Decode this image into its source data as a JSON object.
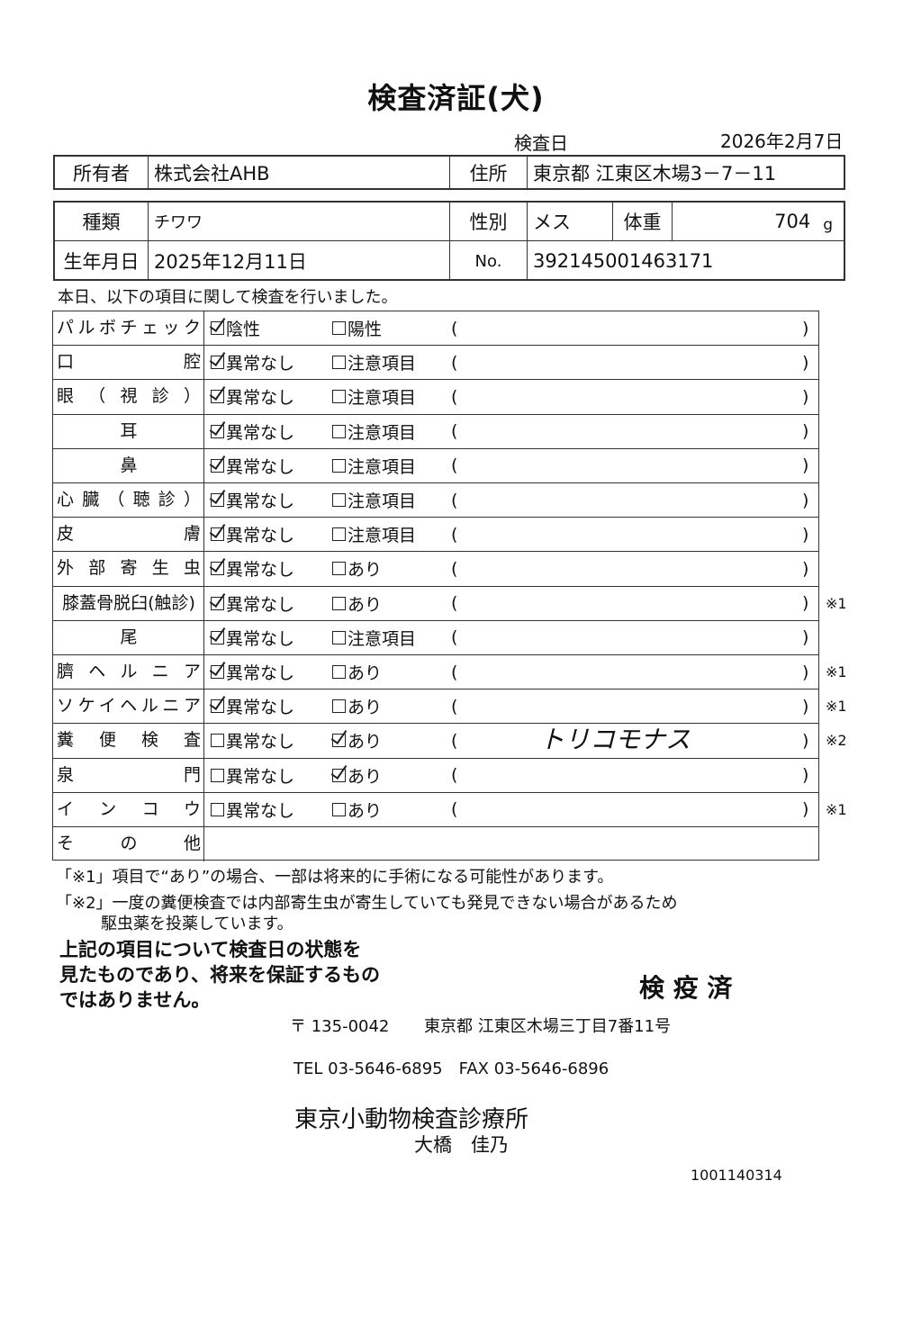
{
  "title": "検査済証(犬)",
  "exam_date_label": "検査日",
  "exam_date": "2026年2月7日",
  "owner": {
    "label": "所有者",
    "value": "株式会社AHB",
    "address_label": "住所",
    "address": "東京都 江東区木場3－7－11"
  },
  "animal": {
    "breed_label": "種類",
    "breed": "チワワ",
    "sex_label": "性別",
    "sex": "メス",
    "weight_label": "体重",
    "weight": "704",
    "weight_unit": "g",
    "birth_label": "生年月日",
    "birth": "2025年12月11日",
    "no_label": "No.",
    "no": "392145001463171"
  },
  "intro": "本日、以下の項目に関して検査を行いました。",
  "items": [
    {
      "label": "パルボチェック",
      "opt1": "陰性",
      "opt2": "陽性",
      "checked": 1,
      "note": "",
      "comment": ""
    },
    {
      "label": "口腔",
      "opt1": "異常なし",
      "opt2": "注意項目",
      "checked": 1,
      "note": "",
      "comment": ""
    },
    {
      "label": "眼（視診）",
      "opt1": "異常なし",
      "opt2": "注意項目",
      "checked": 1,
      "note": "",
      "comment": ""
    },
    {
      "label": "耳",
      "opt1": "異常なし",
      "opt2": "注意項目",
      "checked": 1,
      "note": "",
      "comment": ""
    },
    {
      "label": "鼻",
      "opt1": "異常なし",
      "opt2": "注意項目",
      "checked": 1,
      "note": "",
      "comment": ""
    },
    {
      "label": "心臓（聴診）",
      "opt1": "異常なし",
      "opt2": "注意項目",
      "checked": 1,
      "note": "",
      "comment": ""
    },
    {
      "label": "皮膚",
      "opt1": "異常なし",
      "opt2": "注意項目",
      "checked": 1,
      "note": "",
      "comment": ""
    },
    {
      "label": "外部寄生虫",
      "opt1": "異常なし",
      "opt2": "あり",
      "checked": 1,
      "note": "",
      "comment": ""
    },
    {
      "label": "膝蓋骨脱臼(触診)",
      "opt1": "異常なし",
      "opt2": "あり",
      "checked": 1,
      "note": "※1",
      "comment": ""
    },
    {
      "label": "尾",
      "opt1": "異常なし",
      "opt2": "注意項目",
      "checked": 1,
      "note": "",
      "comment": ""
    },
    {
      "label": "臍ヘルニア",
      "opt1": "異常なし",
      "opt2": "あり",
      "checked": 1,
      "note": "※1",
      "comment": ""
    },
    {
      "label": "ソケイヘルニア",
      "opt1": "異常なし",
      "opt2": "あり",
      "checked": 1,
      "note": "※1",
      "comment": ""
    },
    {
      "label": "糞便検査",
      "opt1": "異常なし",
      "opt2": "あり",
      "checked": 2,
      "note": "※2",
      "comment": "トリコモナス"
    },
    {
      "label": "泉門",
      "opt1": "異常なし",
      "opt2": "あり",
      "checked": 2,
      "note": "",
      "comment": ""
    },
    {
      "label": "インコウ",
      "opt1": "異常なし",
      "opt2": "あり",
      "checked": 0,
      "note": "※1",
      "comment": ""
    }
  ],
  "other_label": "その他",
  "paren_open": "(",
  "paren_close": ")",
  "footnote1": "「※1」項目で“あり”の場合、一部は将来的に手術になる可能性があります。",
  "footnote2a": "「※2」一度の糞便検査では内部寄生虫が寄生していても発見できない場合があるため",
  "footnote2b": "駆虫薬を投薬しています。",
  "disclaimer": [
    "上記の項目について検査日の状態を",
    "見たものであり、将来を保証するもの",
    "ではありません。"
  ],
  "stamp": "検 疫 済",
  "postal": "〒 135-0042",
  "clinic_address": "東京都 江東区木場三丁目7番11号",
  "tel_fax": "TEL 03-5646-6895　FAX 03-5646-6896",
  "clinic_name": "東京小動物検査診療所",
  "doctor": "大橋　佳乃",
  "serial": "1001140314"
}
